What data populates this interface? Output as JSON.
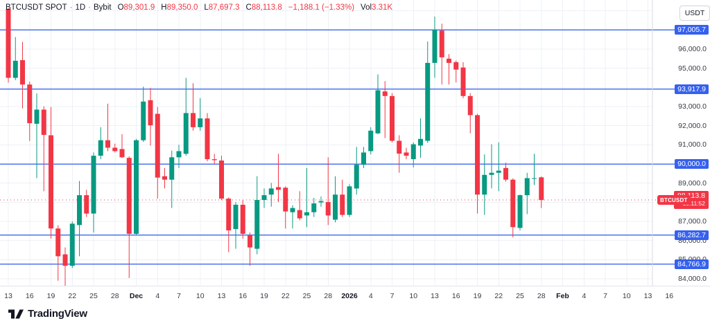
{
  "header": {
    "symbol": "BTCUSDT SPOT",
    "separator": "·",
    "interval": "1D",
    "exchange": "Bybit",
    "o_label": "O",
    "o": "89,301.9",
    "h_label": "H",
    "h": "89,350.0",
    "l_label": "L",
    "l": "87,697.3",
    "c_label": "C",
    "c": "88,113.8",
    "change": "−1,188.1 (−1.33%)",
    "vol_label": "Vol",
    "vol": "3.31K"
  },
  "price_axis": {
    "currency_button": "USDT",
    "plain_labels": [
      {
        "text": "96,000.0",
        "price": 96000
      },
      {
        "text": "95,000.0",
        "price": 95000
      },
      {
        "text": "93,000.0",
        "price": 93000
      },
      {
        "text": "92,000.0",
        "price": 92000
      },
      {
        "text": "91,000.0",
        "price": 91000
      },
      {
        "text": "89,000.0",
        "price": 89000
      },
      {
        "text": "87,000.0",
        "price": 87000
      },
      {
        "text": "86,000.0",
        "price": 86000
      },
      {
        "text": "85,000.0",
        "price": 85000
      },
      {
        "text": "84,000.0",
        "price": 84000
      }
    ],
    "level_labels": [
      {
        "text": "97,005.7",
        "price": 97005.7
      },
      {
        "text": "93,917.9",
        "price": 93917.9
      },
      {
        "text": "90,000.0",
        "price": 90000.0
      },
      {
        "text": "86,282.7",
        "price": 86282.7
      },
      {
        "text": "84,766.9",
        "price": 84766.9
      }
    ],
    "current": {
      "tag": "BTCUSDT",
      "price_text": "88,113.8",
      "countdown": "15:11:52",
      "price": 88113.8
    }
  },
  "time_axis": {
    "labels": [
      {
        "text": "13",
        "bold": false
      },
      {
        "text": "16",
        "bold": false
      },
      {
        "text": "19",
        "bold": false
      },
      {
        "text": "22",
        "bold": false
      },
      {
        "text": "25",
        "bold": false
      },
      {
        "text": "28",
        "bold": false
      },
      {
        "text": "Dec",
        "bold": true
      },
      {
        "text": "4",
        "bold": false
      },
      {
        "text": "7",
        "bold": false
      },
      {
        "text": "10",
        "bold": false
      },
      {
        "text": "13",
        "bold": false
      },
      {
        "text": "16",
        "bold": false
      },
      {
        "text": "19",
        "bold": false
      },
      {
        "text": "22",
        "bold": false
      },
      {
        "text": "25",
        "bold": false
      },
      {
        "text": "28",
        "bold": false
      },
      {
        "text": "2026",
        "bold": true
      },
      {
        "text": "4",
        "bold": false
      },
      {
        "text": "7",
        "bold": false
      },
      {
        "text": "10",
        "bold": false
      },
      {
        "text": "13",
        "bold": false
      },
      {
        "text": "16",
        "bold": false
      },
      {
        "text": "19",
        "bold": false
      },
      {
        "text": "22",
        "bold": false
      },
      {
        "text": "25",
        "bold": false
      },
      {
        "text": "28",
        "bold": false
      },
      {
        "text": "Feb",
        "bold": true
      },
      {
        "text": "4",
        "bold": false
      },
      {
        "text": "7",
        "bold": false
      },
      {
        "text": "10",
        "bold": false
      },
      {
        "text": "13",
        "bold": false
      },
      {
        "text": "16",
        "bold": false
      }
    ]
  },
  "logo": {
    "brand": "TradingView"
  },
  "colors": {
    "up": "#089981",
    "down": "#f23645",
    "grid": "#eef0f6",
    "level_line": "#4d73f0",
    "level_label_bg": "#3561ef",
    "current_line": "#f23645",
    "axis_text": "#363a45",
    "value_red": "#f23645"
  },
  "chart_data": {
    "type": "candlestick",
    "symbol": "BTCUSDT SPOT",
    "interval": "1D",
    "exchange": "Bybit",
    "ylim": [
      83640,
      98566
    ],
    "grid_step": 1000,
    "grid_price_min": 84000,
    "grid_price_max": 98000,
    "levels": [
      97005.7,
      93917.9,
      90000.0,
      86282.7,
      84766.9
    ],
    "current_price": 88113.8,
    "last_candle_ohlc": [
      89301.9,
      89350.0,
      87697.3,
      88113.8
    ],
    "candles_format": "[open, high, low, close] per day, Nov 13 to Jan 27",
    "candles": [
      [
        98100,
        98150,
        94250,
        94500
      ],
      [
        94500,
        96630,
        94380,
        95390
      ],
      [
        95425,
        96380,
        92900,
        94150
      ],
      [
        94150,
        94300,
        91200,
        92130
      ],
      [
        92100,
        93690,
        89260,
        92840
      ],
      [
        92840,
        93010,
        88580,
        91520
      ],
      [
        91500,
        92980,
        86100,
        86630
      ],
      [
        86630,
        86800,
        83900,
        85180
      ],
      [
        85280,
        85640,
        83620,
        84680
      ],
      [
        84680,
        87000,
        84570,
        86880
      ],
      [
        86810,
        89110,
        85180,
        88370
      ],
      [
        88370,
        88650,
        87230,
        87410
      ],
      [
        87410,
        90600,
        86420,
        90430
      ],
      [
        90430,
        91920,
        90250,
        91240
      ],
      [
        91240,
        93150,
        90670,
        90850
      ],
      [
        90850,
        91060,
        90600,
        90670
      ],
      [
        90780,
        91560,
        90320,
        90350
      ],
      [
        90320,
        90400,
        84040,
        86350
      ],
      [
        86350,
        91310,
        86280,
        91240
      ],
      [
        91240,
        94040,
        91150,
        93260
      ],
      [
        93330,
        93970,
        90960,
        92020
      ],
      [
        92620,
        92980,
        88190,
        89290
      ],
      [
        89360,
        89790,
        88720,
        89180
      ],
      [
        89180,
        90700,
        87700,
        90350
      ],
      [
        90350,
        91000,
        89790,
        90670
      ],
      [
        90530,
        94500,
        90430,
        92660
      ],
      [
        92660,
        94220,
        91740,
        91920
      ],
      [
        91920,
        93440,
        91740,
        92380
      ],
      [
        92380,
        92660,
        90140,
        90250
      ],
      [
        90250,
        90530,
        90000,
        90200
      ],
      [
        90180,
        90430,
        88120,
        88190
      ],
      [
        88190,
        88250,
        85390,
        86530
      ],
      [
        86600,
        88010,
        85570,
        87870
      ],
      [
        87870,
        88120,
        86100,
        86350
      ],
      [
        86280,
        86420,
        84680,
        85640
      ],
      [
        85570,
        89360,
        85280,
        88120
      ],
      [
        88120,
        88720,
        87700,
        88370
      ],
      [
        88400,
        89010,
        87770,
        88720
      ],
      [
        88790,
        90530,
        88010,
        88650
      ],
      [
        88760,
        88830,
        86630,
        87520
      ],
      [
        87480,
        87840,
        86630,
        87700
      ],
      [
        87590,
        88580,
        87060,
        87160
      ],
      [
        87310,
        89790,
        86700,
        87480
      ],
      [
        87480,
        88230,
        87230,
        87940
      ],
      [
        87990,
        88300,
        87770,
        88060
      ],
      [
        88010,
        90350,
        86810,
        87310
      ],
      [
        87090,
        89360,
        86950,
        88400
      ],
      [
        88400,
        89180,
        87230,
        87340
      ],
      [
        87340,
        88940,
        87230,
        88830
      ],
      [
        88720,
        90890,
        88400,
        89960
      ],
      [
        89960,
        90890,
        89790,
        90600
      ],
      [
        90670,
        91920,
        90500,
        91740
      ],
      [
        91600,
        94680,
        91560,
        93850
      ],
      [
        93790,
        94330,
        91350,
        93550
      ],
      [
        93550,
        93700,
        91130,
        91210
      ],
      [
        91210,
        91500,
        89540,
        90540
      ],
      [
        90600,
        90850,
        90250,
        90430
      ],
      [
        90250,
        91130,
        89820,
        91030
      ],
      [
        90960,
        92380,
        90320,
        91310
      ],
      [
        91210,
        96400,
        91100,
        95280
      ],
      [
        95280,
        97700,
        94500,
        97005
      ],
      [
        96970,
        97330,
        94150,
        95570
      ],
      [
        95500,
        95740,
        94150,
        95280
      ],
      [
        95320,
        95400,
        94260,
        94930
      ],
      [
        95040,
        95320,
        93440,
        93550
      ],
      [
        93550,
        93700,
        91600,
        92550
      ],
      [
        92550,
        92620,
        87410,
        88400
      ],
      [
        88400,
        90500,
        87340,
        89430
      ],
      [
        89430,
        91030,
        88720,
        89540
      ],
      [
        89540,
        91130,
        88580,
        89650
      ],
      [
        89790,
        90070,
        89080,
        89180
      ],
      [
        89180,
        89250,
        86170,
        86700
      ],
      [
        86660,
        88400,
        86530,
        88370
      ],
      [
        88370,
        89540,
        87380,
        89260
      ],
      [
        89260,
        90530,
        88900,
        89260
      ],
      [
        89301.9,
        89350.0,
        87697.3,
        88113.8
      ]
    ]
  }
}
